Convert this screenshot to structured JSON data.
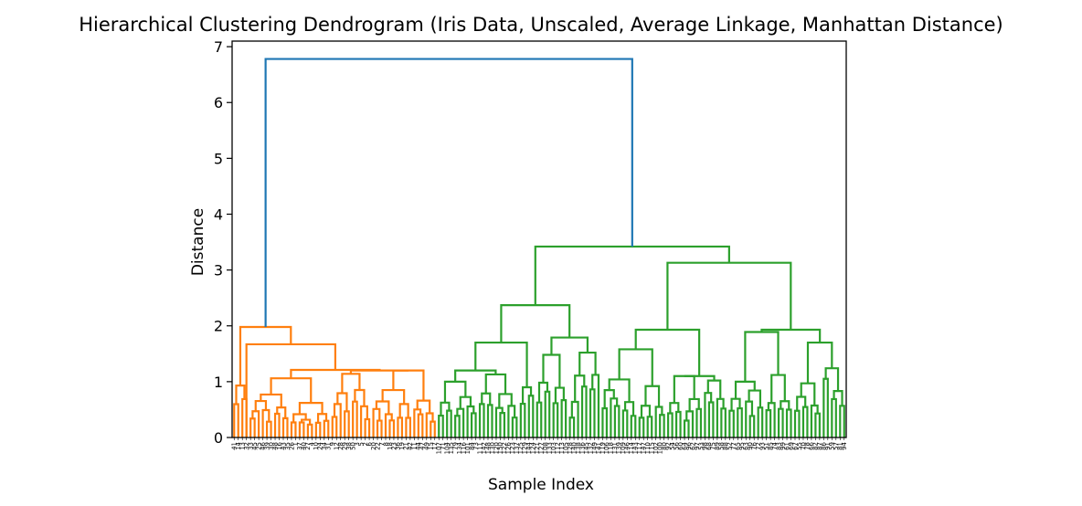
{
  "chart_data": {
    "type": "dendrogram",
    "title": "Hierarchical Clustering Dendrogram (Iris Data, Unscaled, Average Linkage, Manhattan Distance)",
    "xlabel": "Sample Index",
    "ylabel": "Distance",
    "ylim": [
      0,
      7.1
    ],
    "yticks": [
      0,
      1,
      2,
      3,
      4,
      5,
      6,
      7
    ],
    "grid": false,
    "leaf_count": 150,
    "leaf_labels": [
      "41",
      "14",
      "13",
      "32",
      "33",
      "45",
      "25",
      "46",
      "39",
      "30",
      "48",
      "16",
      "43",
      "35",
      "26",
      "1",
      "37",
      "40",
      "27",
      "4",
      "10",
      "24",
      "34",
      "31",
      "9",
      "12",
      "28",
      "29",
      "38",
      "50",
      "3",
      "5",
      "2",
      "6",
      "20",
      "22",
      "7",
      "8",
      "18",
      "23",
      "36",
      "19",
      "21",
      "42",
      "11",
      "44",
      "47",
      "49",
      "15",
      "17",
      "107",
      "71",
      "104",
      "135",
      "79",
      "134",
      "116",
      "101",
      "84",
      "73",
      "111",
      "142",
      "148",
      "130",
      "120",
      "150",
      "122",
      "126",
      "123",
      "137",
      "125",
      "129",
      "144",
      "124",
      "121",
      "127",
      "108",
      "133",
      "103",
      "112",
      "113",
      "105",
      "128",
      "140",
      "138",
      "136",
      "145",
      "132",
      "149",
      "141",
      "119",
      "106",
      "118",
      "131",
      "139",
      "109",
      "146",
      "114",
      "143",
      "117",
      "147",
      "110",
      "115",
      "102",
      "100",
      "80",
      "92",
      "54",
      "56",
      "60",
      "64",
      "96",
      "62",
      "97",
      "53",
      "98",
      "68",
      "75",
      "89",
      "58",
      "88",
      "52",
      "77",
      "65",
      "95",
      "63",
      "90",
      "76",
      "72",
      "93",
      "51",
      "85",
      "74",
      "83",
      "99",
      "61",
      "69",
      "67",
      "55",
      "70",
      "78",
      "66",
      "82",
      "87",
      "86",
      "91",
      "59",
      "57",
      "81",
      "94"
    ],
    "link_colors": {
      "cluster_1": "#ff7f0e",
      "cluster_2": "#2ca02c",
      "above_threshold": "#1f77b4"
    },
    "merges": [
      {
        "left": "cluster_1",
        "right": "cluster_2",
        "height": 6.78
      },
      {
        "left": "cluster_1.left",
        "right": "cluster_1.right",
        "height": 1.98
      },
      {
        "left": "cluster_2.left",
        "right": "cluster_2.right",
        "height": 3.42
      },
      {
        "left": "cluster_2.left.a",
        "right": "cluster_2.left.b",
        "height": 2.37
      },
      {
        "left": "cluster_2.right.a",
        "right": "cluster_2.right.b",
        "height": 3.13
      },
      {
        "left": "cluster_2.right.a.1",
        "right": "cluster_2.right.a.2",
        "height": 1.93
      },
      {
        "left": "cluster_2.right.b.1",
        "right": "cluster_2.right.b.2",
        "height": 1.93
      },
      {
        "left": "cluster_1.right.a",
        "right": "cluster_1.right.b",
        "height": 1.67
      },
      {
        "left": "cluster_2.left.a.1",
        "right": "cluster_2.left.a.2",
        "height": 1.7
      },
      {
        "left": "cluster_2.left.b.1",
        "right": "cluster_2.left.b.2",
        "height": 1.79
      },
      {
        "left": "cluster_2.right.b.2.1",
        "right": "cluster_2.right.b.2.2",
        "height": 1.7
      },
      {
        "left": "cluster_2.right.a.1.1",
        "right": "cluster_2.right.a.1.2",
        "height": 1.58
      }
    ]
  }
}
